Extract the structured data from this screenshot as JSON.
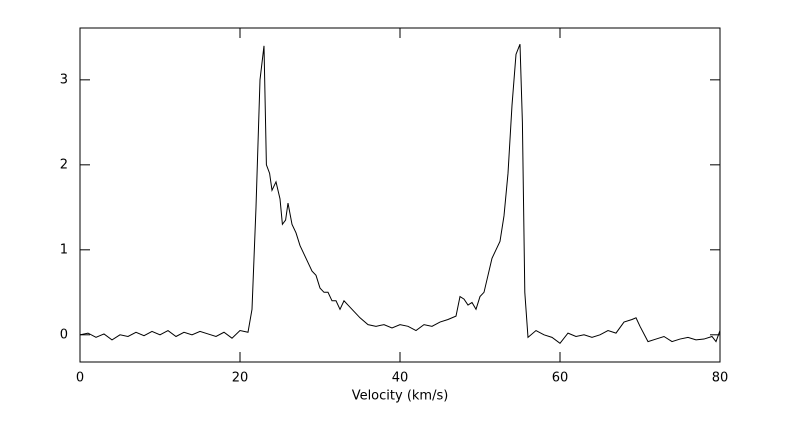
{
  "chart_data": {
    "type": "line",
    "x_label": "Velocity (km/s)",
    "x": [
      0,
      1,
      2,
      3,
      4,
      5,
      6,
      7,
      8,
      9,
      10,
      11,
      12,
      13,
      14,
      15,
      16,
      17,
      18,
      19,
      20,
      21,
      21.5,
      22,
      22.5,
      23,
      23.3,
      23.7,
      24,
      24.5,
      25,
      25.3,
      25.7,
      26,
      26.5,
      27,
      27.5,
      28,
      28.5,
      29,
      29.5,
      30,
      30.5,
      31,
      31.5,
      32,
      32.5,
      33,
      33.5,
      34,
      35,
      36,
      37,
      38,
      39,
      40,
      41,
      42,
      43,
      44,
      45,
      46,
      47,
      47.5,
      48,
      48.5,
      49,
      49.5,
      50,
      50.5,
      51,
      51.5,
      52,
      52.5,
      53,
      53.5,
      54,
      54.5,
      55,
      55.3,
      55.6,
      56,
      57,
      58,
      59,
      60,
      61,
      62,
      63,
      64,
      65,
      66,
      67,
      68,
      69,
      69.5,
      70,
      71,
      72,
      73,
      74,
      75,
      76,
      77,
      78,
      79,
      79.5,
      80
    ],
    "series": [
      {
        "color": "#000000",
        "values": [
          0.0,
          0.02,
          -0.03,
          0.01,
          -0.06,
          0.0,
          -0.02,
          0.03,
          -0.01,
          0.04,
          0.0,
          0.05,
          -0.02,
          0.03,
          0.0,
          0.04,
          0.01,
          -0.02,
          0.03,
          -0.04,
          0.05,
          0.03,
          0.3,
          1.5,
          3.0,
          3.4,
          2.0,
          1.9,
          1.7,
          1.8,
          1.6,
          1.3,
          1.35,
          1.55,
          1.3,
          1.2,
          1.05,
          0.95,
          0.85,
          0.75,
          0.7,
          0.55,
          0.5,
          0.5,
          0.4,
          0.4,
          0.3,
          0.4,
          0.35,
          0.3,
          0.2,
          0.12,
          0.1,
          0.12,
          0.08,
          0.12,
          0.1,
          0.05,
          0.12,
          0.1,
          0.15,
          0.18,
          0.22,
          0.45,
          0.42,
          0.35,
          0.38,
          0.3,
          0.45,
          0.5,
          0.7,
          0.9,
          1.0,
          1.1,
          1.4,
          1.9,
          2.7,
          3.3,
          3.42,
          2.5,
          0.5,
          -0.03,
          0.05,
          0.0,
          -0.03,
          -0.1,
          0.02,
          -0.02,
          0.0,
          -0.03,
          0.0,
          0.05,
          0.02,
          0.15,
          0.18,
          0.2,
          0.1,
          -0.08,
          -0.05,
          -0.02,
          -0.08,
          -0.05,
          -0.03,
          -0.06,
          -0.05,
          -0.02,
          -0.08,
          0.05
        ]
      }
    ],
    "xlim": [
      0,
      80
    ],
    "ylim": [
      -0.32,
      3.61
    ],
    "xticks": [
      0,
      20,
      40,
      60,
      80
    ],
    "yticks": [
      0,
      1,
      2,
      3
    ]
  }
}
